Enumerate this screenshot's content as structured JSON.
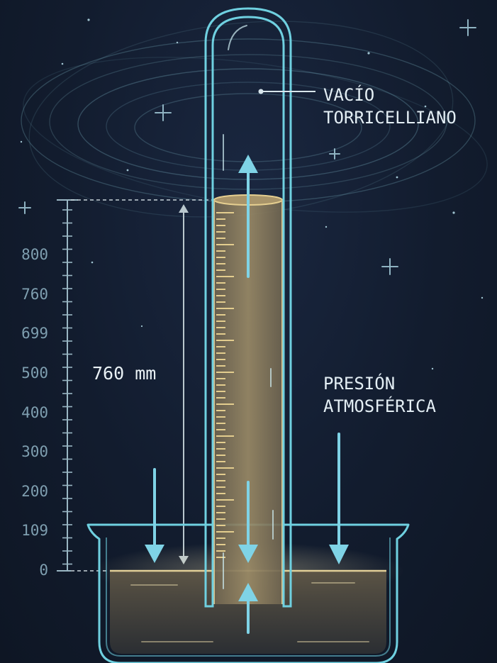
{
  "labels": {
    "vacuum_line1": "VACÍO",
    "vacuum_line2": "TORRICELLIANO",
    "pressure_line1": "PRESIÓN",
    "pressure_line2": "ATMOSFÉRICA",
    "column_height": "760 mm"
  },
  "scale": {
    "ticks": [
      "800",
      "760",
      "699",
      "500",
      "400",
      "300",
      "200",
      "109",
      "0"
    ]
  },
  "colors": {
    "background": "#121c2e",
    "glass_outline": "#6fd0e0",
    "mercury_fill": "#8a7a5c",
    "mercury_edge": "#d8c08a",
    "arrow": "#7fd3e6",
    "scale_line": "#9ab7c4",
    "label_text": "#e3eef4"
  },
  "icons": {
    "sparkle": "four-point-star",
    "arrow": "arrow-head"
  }
}
